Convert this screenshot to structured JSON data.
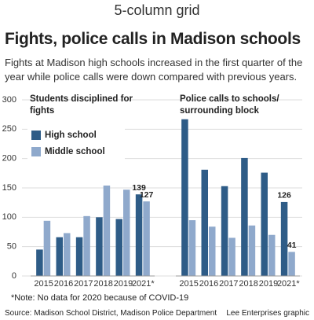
{
  "label": "5-column grid",
  "title": "Fights, police calls in Madison schools",
  "subtitle": "Fights at Madison high schools increased in the first quarter of the year while police calls were down compared with previous years.",
  "note": "*Note: No data for 2020 because of COVID-19",
  "source": "Source: Madison School District, Madison Police Department",
  "credit": "Lee Enterprises graphic",
  "chart_data": [
    {
      "type": "bar",
      "title": "Students disciplined for fights",
      "categories": [
        "2015",
        "2016",
        "2017",
        "2018",
        "2019",
        "2021*"
      ],
      "series": [
        {
          "name": "High school",
          "color": "#2e5c87",
          "values": [
            45,
            66,
            66,
            100,
            97,
            139
          ]
        },
        {
          "name": "Middle school",
          "color": "#8fa9cc",
          "values": [
            94,
            73,
            102,
            154,
            147,
            127
          ]
        }
      ],
      "ylim": [
        0,
        300
      ],
      "yticks": [
        0,
        50,
        100,
        150,
        200,
        250,
        300
      ],
      "grid": true,
      "legend": "upper-left"
    },
    {
      "type": "bar",
      "title": "Police calls to schools/ surrounding block",
      "categories": [
        "2015",
        "2016",
        "2017",
        "2018",
        "2019",
        "2021*"
      ],
      "series": [
        {
          "name": "High school",
          "color": "#2e5c87",
          "values": [
            267,
            181,
            153,
            201,
            176,
            126
          ]
        },
        {
          "name": "Middle school",
          "color": "#8fa9cc",
          "values": [
            95,
            84,
            65,
            86,
            70,
            41
          ]
        }
      ],
      "ylim": [
        0,
        300
      ],
      "grid": true
    }
  ]
}
